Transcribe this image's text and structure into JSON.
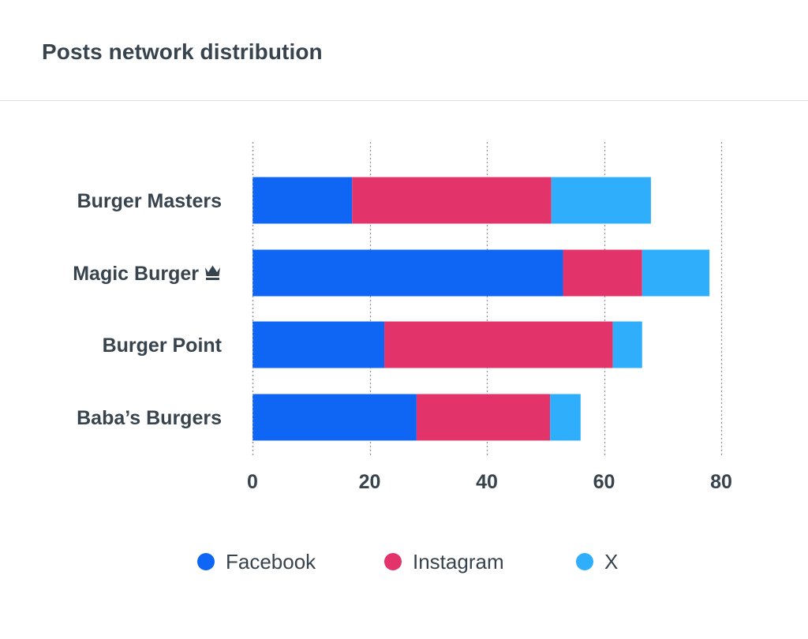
{
  "title": "Posts network distribution",
  "chart_data": {
    "type": "bar",
    "orientation": "horizontal",
    "stacked": true,
    "categories": [
      "Burger Masters",
      "Magic Burger",
      "Burger Point",
      "Baba’s Burgers"
    ],
    "category_icons": [
      "",
      "crown-icon",
      "",
      ""
    ],
    "series": [
      {
        "name": "Facebook",
        "color": "#0f66f5",
        "values": [
          17,
          53,
          22.5,
          28
        ]
      },
      {
        "name": "Instagram",
        "color": "#e3336b",
        "values": [
          34,
          13.5,
          39,
          22.8
        ]
      },
      {
        "name": "X",
        "color": "#2eaefb",
        "values": [
          17,
          11.5,
          5,
          5.2
        ]
      }
    ],
    "xlim": [
      0,
      80
    ],
    "xticks": [
      0,
      20,
      40,
      60,
      80
    ],
    "grid": "vertical-dotted",
    "legend_position": "bottom"
  }
}
